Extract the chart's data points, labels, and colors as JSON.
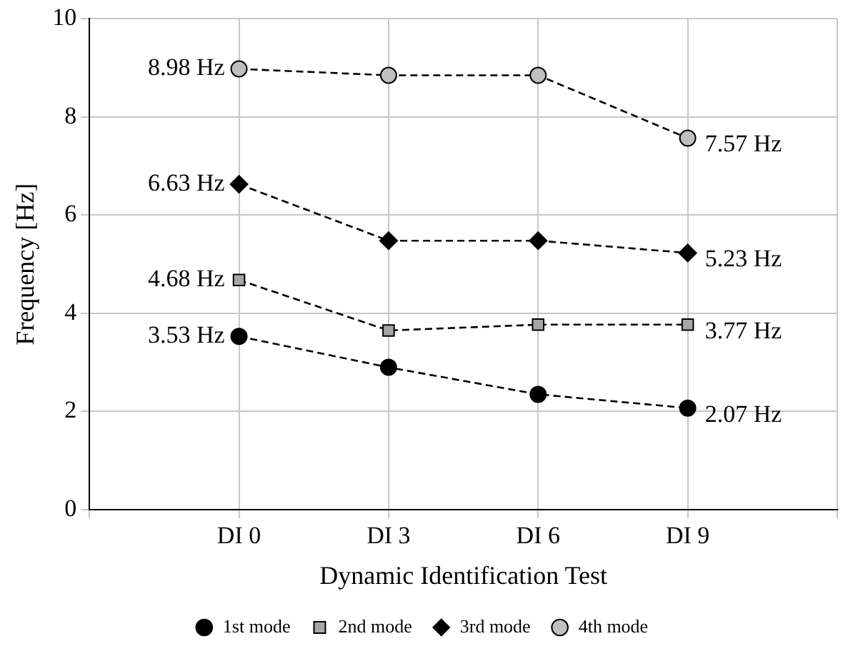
{
  "chart_data": {
    "type": "line",
    "xlabel": "Dynamic Identification Test",
    "ylabel": "Frequency [Hz]",
    "categories": [
      null,
      "DI 0",
      "DI 3",
      "DI 6",
      "DI 9",
      null
    ],
    "series": [
      {
        "name": "1st mode",
        "color": "#000000",
        "marker": "circle",
        "values": [
          null,
          3.53,
          2.9,
          2.35,
          2.07,
          null
        ],
        "value_labels": [
          null,
          "3.53 Hz",
          null,
          null,
          "2.07 Hz",
          null
        ]
      },
      {
        "name": "2nd mode",
        "color": "#a6a6a6",
        "marker": "square",
        "values": [
          null,
          4.68,
          3.65,
          3.77,
          3.77,
          null
        ],
        "value_labels": [
          null,
          "4.68 Hz",
          null,
          null,
          "3.77 Hz",
          null
        ]
      },
      {
        "name": "3rd mode",
        "color": "#000000",
        "marker": "diamond",
        "values": [
          null,
          6.63,
          5.48,
          5.48,
          5.23,
          null
        ],
        "value_labels": [
          null,
          "6.63 Hz",
          null,
          null,
          "5.23 Hz",
          null
        ]
      },
      {
        "name": "4th mode",
        "color": "#bfbfbf",
        "marker": "circle",
        "values": [
          null,
          8.98,
          8.85,
          8.85,
          7.57,
          null
        ],
        "value_labels": [
          null,
          "8.98 Hz",
          null,
          null,
          "7.57 Hz",
          null
        ]
      }
    ],
    "ylim": [
      0,
      10
    ],
    "yticks": [
      0,
      2,
      4,
      6,
      8,
      10
    ],
    "grid": true,
    "legend": "bottom",
    "line_style": "dashed"
  }
}
